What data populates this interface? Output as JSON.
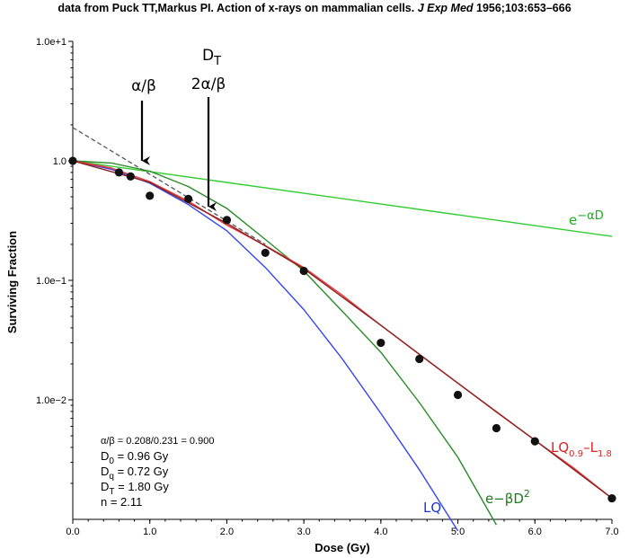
{
  "header": {
    "text_plain": "data from Puck TT,Markus PI. Action of x-rays on mammalian cells. ",
    "journal": "J Exp Med",
    "citation": " 1956;103:653–666"
  },
  "chart_data": {
    "type": "scatter",
    "xlabel": "Dose (Gy)",
    "ylabel": "Surviving Fraction",
    "xlim": [
      0,
      7
    ],
    "ylim": [
      0.001,
      10
    ],
    "yscale": "log",
    "grid": false,
    "x_ticks": [
      "0.0",
      "1.0",
      "2.0",
      "3.0",
      "4.0",
      "5.0",
      "6.0",
      "7.0"
    ],
    "y_ticks": [
      {
        "value": 10,
        "label": "1.0e+1"
      },
      {
        "value": 1,
        "label": "1.0"
      },
      {
        "value": 0.1,
        "label": "1.0e−1"
      },
      {
        "value": 0.01,
        "label": "1.0e−2"
      }
    ],
    "points": [
      {
        "x": 0.0,
        "y": 1.0
      },
      {
        "x": 0.6,
        "y": 0.8
      },
      {
        "x": 0.75,
        "y": 0.74
      },
      {
        "x": 1.0,
        "y": 0.51
      },
      {
        "x": 1.5,
        "y": 0.48
      },
      {
        "x": 2.0,
        "y": 0.32
      },
      {
        "x": 2.5,
        "y": 0.17
      },
      {
        "x": 3.0,
        "y": 0.12
      },
      {
        "x": 4.0,
        "y": 0.03
      },
      {
        "x": 4.5,
        "y": 0.022
      },
      {
        "x": 5.0,
        "y": 0.011
      },
      {
        "x": 5.5,
        "y": 0.0058
      },
      {
        "x": 6.0,
        "y": 0.0045
      },
      {
        "x": 7.0,
        "y": 0.0015
      }
    ],
    "series": [
      {
        "name": "e−αD",
        "color": "#33cc33",
        "x": [
          0,
          7
        ],
        "y": [
          1.0,
          0.233
        ]
      },
      {
        "name": "LQ",
        "color": "#3344ee",
        "x": [
          0,
          0.5,
          1,
          1.5,
          2,
          2.5,
          3,
          3.5,
          4,
          4.5,
          5.0
        ],
        "y": [
          1.0,
          0.85,
          0.65,
          0.43,
          0.26,
          0.128,
          0.057,
          0.022,
          0.0077,
          0.0026,
          0.0008
        ]
      },
      {
        "name": "e−βD²",
        "color": "#2a8a2a",
        "x": [
          0,
          0.5,
          1,
          1.5,
          2,
          2.5,
          3,
          3.5,
          4,
          4.5,
          5,
          5.5
        ],
        "y": [
          1.0,
          0.96,
          0.82,
          0.61,
          0.4,
          0.22,
          0.12,
          0.055,
          0.025,
          0.0095,
          0.0033,
          0.0009
        ]
      },
      {
        "name": "LQ0.9−L1.8",
        "color": "#ee3333",
        "x": [
          0,
          0.5,
          1,
          1.5,
          2,
          2.5,
          3,
          3.5,
          4,
          4.5,
          5,
          5.5,
          6,
          6.5,
          7
        ],
        "y": [
          1.0,
          0.87,
          0.67,
          0.46,
          0.29,
          0.195,
          0.128,
          0.075,
          0.042,
          0.024,
          0.0138,
          0.0079,
          0.0046,
          0.0027,
          0.0015
        ]
      },
      {
        "name": "ref-dark",
        "color": "#8a2222",
        "x": [
          0,
          1,
          2,
          3,
          4,
          5,
          6,
          7
        ],
        "y": [
          1.0,
          0.66,
          0.3,
          0.125,
          0.042,
          0.0138,
          0.0046,
          0.0015
        ]
      },
      {
        "name": "asymptote",
        "color": "#555555",
        "dashed": true,
        "x": [
          0,
          2.5
        ],
        "y": [
          1.9,
          0.2
        ]
      }
    ],
    "annotations": {
      "arrow1": {
        "label": "α/β",
        "x": 0.9
      },
      "arrow2": {
        "label_top": "D",
        "label_top_sub": "T",
        "label_bottom": "2α/β",
        "x": 1.8
      },
      "curve_labels": {
        "exp_alpha": {
          "base": "e",
          "rest": "−αD"
        },
        "lq": "LQ",
        "exp_beta": {
          "base": "e−βD",
          "sup": "2"
        },
        "lql": {
          "a": "LQ",
          "a_sub": "0.9",
          "b": "–L",
          "b_sub": "1.8"
        }
      }
    },
    "params": {
      "ratio": "α/β = 0.208/0.231 = 0.900",
      "d0": {
        "name": "D",
        "sub": "0",
        "value": " = 0.96 Gy"
      },
      "dq": {
        "name": "D",
        "sub": "q",
        "value": " = 0.72 Gy"
      },
      "dt": {
        "name": "D",
        "sub": "T",
        "value": " = 1.80 Gy"
      },
      "n": "n = 2.11"
    }
  }
}
